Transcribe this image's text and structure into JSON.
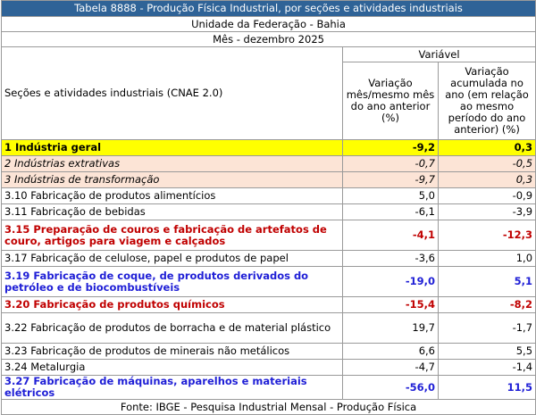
{
  "title": "Tabela 8888 - Produção Física Industrial, por seções e atividades industriais",
  "unit_label": "Unidade da Federação - Bahia",
  "period_label": "Mês - dezembro 2025",
  "variable_label": "Variável",
  "row_header": "Seções e atividades industriais (CNAE 2.0)",
  "col1_header": "Variação mês/mesmo mês do ano anterior (%)",
  "col2_header": "Variação acumulada no ano (em relação ao mesmo período do ano anterior) (%)",
  "rows": [
    {
      "label": "1 Indústria geral",
      "v1": "-9,2",
      "v2": "0,3"
    },
    {
      "label": "2 Indústrias extrativas",
      "v1": "-0,7",
      "v2": "-0,5"
    },
    {
      "label": "3 Indústrias de transformação",
      "v1": "-9,7",
      "v2": "0,3"
    },
    {
      "label": "3.10 Fabricação de produtos alimentícios",
      "v1": "5,0",
      "v2": "-0,9"
    },
    {
      "label": "3.11 Fabricação de bebidas",
      "v1": "-6,1",
      "v2": "-3,9"
    },
    {
      "label": "3.15 Preparação de couros e fabricação de artefatos de couro, artigos para viagem e calçados",
      "v1": "-4,1",
      "v2": "-12,3"
    },
    {
      "label": "3.17 Fabricação de celulose, papel e produtos de papel",
      "v1": "-3,6",
      "v2": "1,0"
    },
    {
      "label": "3.19 Fabricação de coque, de produtos derivados do petróleo e de biocombustíveis",
      "v1": "-19,0",
      "v2": "5,1"
    },
    {
      "label": "3.20 Fabricação de produtos químicos",
      "v1": "-15,4",
      "v2": "-8,2"
    },
    {
      "label": "3.22 Fabricação de produtos de borracha e de material plástico",
      "v1": "19,7",
      "v2": "-1,7"
    },
    {
      "label": "3.23 Fabricação de produtos de minerais não metálicos",
      "v1": "6,6",
      "v2": "5,5"
    },
    {
      "label": "3.24 Metalurgia",
      "v1": "-4,7",
      "v2": "-1,4"
    },
    {
      "label": "3.27 Fabricação de máquinas, aparelhos e materiais elétricos",
      "v1": "-56,0",
      "v2": "11,5"
    }
  ],
  "footer": "Fonte: IBGE - Pesquisa Industrial Mensal - Produção Física",
  "colors": {
    "header_bg": "#2f6397",
    "highlight_yellow": "#ffff00",
    "peach": "#fce4d6",
    "red_text": "#c00000",
    "blue_text": "#1f1fd6"
  }
}
